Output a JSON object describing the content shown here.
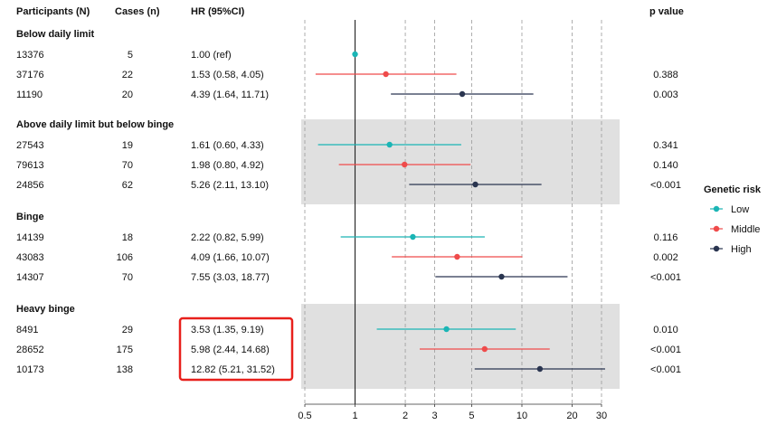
{
  "headers": {
    "participants": "Participants (N)",
    "cases": "Cases (n)",
    "hr": "HR (95%CI)",
    "pvalue": "p value"
  },
  "legend": {
    "title": "Genetic risk",
    "items": [
      {
        "label": "Low",
        "color": "#1bb5b5"
      },
      {
        "label": "Middle",
        "color": "#ef4b4b"
      },
      {
        "label": "High",
        "color": "#2a3550"
      }
    ]
  },
  "highlight_color": "#e8201c",
  "shade_color": "#e0e0e0",
  "chart_data": {
    "type": "forest",
    "xscale": "log",
    "xlim": [
      0.5,
      35
    ],
    "xticks": [
      0.5,
      1,
      2,
      3,
      5,
      10,
      20,
      30
    ],
    "xtick_labels": [
      "0.5",
      "1",
      "2",
      "3",
      "5",
      "10",
      "20",
      "30"
    ],
    "reference_line": 1,
    "groups": [
      {
        "name": "Below daily limit",
        "shaded": false,
        "rows": [
          {
            "risk": "Low",
            "participants": "13376",
            "cases": "5",
            "hr_text": "1.00 (ref)",
            "hr": 1.0,
            "lo": null,
            "hi": null,
            "p": ""
          },
          {
            "risk": "Middle",
            "participants": "37176",
            "cases": "22",
            "hr_text": "1.53 (0.58, 4.05)",
            "hr": 1.53,
            "lo": 0.58,
            "hi": 4.05,
            "p": "0.388"
          },
          {
            "risk": "High",
            "participants": "11190",
            "cases": "20",
            "hr_text": "4.39 (1.64, 11.71)",
            "hr": 4.39,
            "lo": 1.64,
            "hi": 11.71,
            "p": "0.003"
          }
        ]
      },
      {
        "name": "Above daily limit but below binge",
        "shaded": true,
        "rows": [
          {
            "risk": "Low",
            "participants": "27543",
            "cases": "19",
            "hr_text": "1.61 (0.60, 4.33)",
            "hr": 1.61,
            "lo": 0.6,
            "hi": 4.33,
            "p": "0.341"
          },
          {
            "risk": "Middle",
            "participants": "79613",
            "cases": "70",
            "hr_text": "1.98 (0.80, 4.92)",
            "hr": 1.98,
            "lo": 0.8,
            "hi": 4.92,
            "p": "0.140"
          },
          {
            "risk": "High",
            "participants": "24856",
            "cases": "62",
            "hr_text": "5.26 (2.11, 13.10)",
            "hr": 5.26,
            "lo": 2.11,
            "hi": 13.1,
            "p": "<0.001"
          }
        ]
      },
      {
        "name": "Binge",
        "shaded": false,
        "rows": [
          {
            "risk": "Low",
            "participants": "14139",
            "cases": "18",
            "hr_text": "2.22 (0.82, 5.99)",
            "hr": 2.22,
            "lo": 0.82,
            "hi": 5.99,
            "p": "0.116"
          },
          {
            "risk": "Middle",
            "participants": "43083",
            "cases": "106",
            "hr_text": "4.09 (1.66, 10.07)",
            "hr": 4.09,
            "lo": 1.66,
            "hi": 10.07,
            "p": "0.002"
          },
          {
            "risk": "High",
            "participants": "14307",
            "cases": "70",
            "hr_text": "7.55 (3.03, 18.77)",
            "hr": 7.55,
            "lo": 3.03,
            "hi": 18.77,
            "p": "<0.001"
          }
        ]
      },
      {
        "name": "Heavy binge",
        "shaded": true,
        "highlighted": true,
        "rows": [
          {
            "risk": "Low",
            "participants": "8491",
            "cases": "29",
            "hr_text": "3.53 (1.35, 9.19)",
            "hr": 3.53,
            "lo": 1.35,
            "hi": 9.19,
            "p": "0.010"
          },
          {
            "risk": "Middle",
            "participants": "28652",
            "cases": "175",
            "hr_text": "5.98 (2.44, 14.68)",
            "hr": 5.98,
            "lo": 2.44,
            "hi": 14.68,
            "p": "<0.001"
          },
          {
            "risk": "High",
            "participants": "10173",
            "cases": "138",
            "hr_text": "12.82 (5.21, 31.52)",
            "hr": 12.82,
            "lo": 5.21,
            "hi": 31.52,
            "p": "<0.001"
          }
        ]
      }
    ]
  }
}
